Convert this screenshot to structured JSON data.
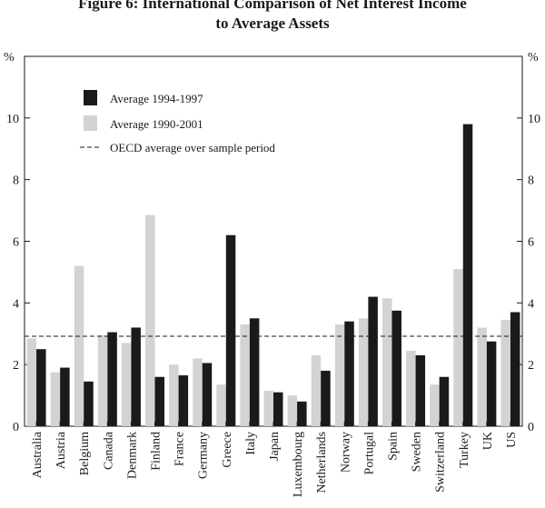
{
  "chart_data": {
    "type": "bar",
    "title_line1": "Figure 6: International Comparison of Net Interest Income",
    "title_line2": "to Average Assets",
    "ylabel_left": "%",
    "ylabel_right": "%",
    "ylim": [
      0,
      12
    ],
    "yticks": [
      0,
      2,
      4,
      6,
      8,
      10
    ],
    "categories": [
      "Australia",
      "Austria",
      "Belgium",
      "Canada",
      "Denmark",
      "Finland",
      "France",
      "Germany",
      "Greece",
      "Italy",
      "Japan",
      "Luxembourg",
      "Netherlands",
      "Norway",
      "Portugal",
      "Spain",
      "Sweden",
      "Switzerland",
      "Turkey",
      "UK",
      "US"
    ],
    "series": [
      {
        "name": "Average 1990-2001",
        "color": "#d3d3d3",
        "values": [
          2.85,
          1.75,
          5.2,
          2.95,
          2.7,
          6.85,
          2.0,
          2.2,
          1.35,
          3.3,
          1.15,
          1.0,
          2.3,
          3.3,
          3.5,
          4.15,
          2.45,
          1.35,
          5.1,
          3.2,
          3.45
        ]
      },
      {
        "name": "Average 1994-1997",
        "color": "#1a1a1a",
        "values": [
          2.5,
          1.9,
          1.45,
          3.05,
          3.2,
          1.6,
          1.65,
          2.05,
          6.2,
          3.5,
          1.1,
          0.8,
          1.8,
          3.4,
          4.2,
          3.75,
          2.3,
          1.6,
          9.8,
          2.75,
          3.7
        ]
      }
    ],
    "reference_line": {
      "name": "OECD average over sample period",
      "value": 2.92,
      "style": "dashed"
    },
    "legend": {
      "placement": "top-left",
      "entries": [
        "Average 1994-1997",
        "Average 1990-2001",
        "OECD average over sample period"
      ]
    },
    "grid": false
  }
}
